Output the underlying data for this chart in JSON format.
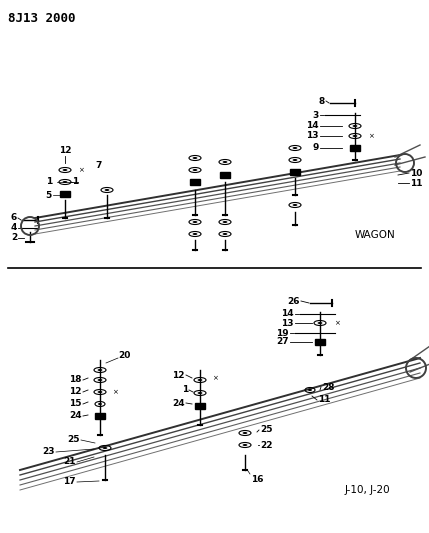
{
  "title": "8J13 2000",
  "bg": "#ffffff",
  "fw": 4.29,
  "fh": 5.33,
  "dpi": 100
}
